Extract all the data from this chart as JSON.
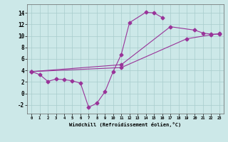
{
  "color": "#993399",
  "bg_color": "#cce8e8",
  "xlabel": "Windchill (Refroidissement éolien,°C)",
  "xlim": [
    -0.5,
    23.5
  ],
  "ylim": [
    -3.5,
    15.5
  ],
  "yticks": [
    -2,
    0,
    2,
    4,
    6,
    8,
    10,
    12,
    14
  ],
  "xticks": [
    0,
    1,
    2,
    3,
    4,
    5,
    6,
    7,
    8,
    9,
    10,
    11,
    12,
    13,
    14,
    15,
    16,
    17,
    18,
    19,
    20,
    21,
    22,
    23
  ],
  "line1_x": [
    0,
    1,
    2,
    3,
    4,
    5,
    6,
    7,
    8,
    9,
    10,
    11,
    12,
    14,
    15,
    16
  ],
  "line1_y": [
    3.8,
    3.3,
    2.1,
    2.5,
    2.4,
    2.2,
    1.8,
    -2.4,
    -1.7,
    0.3,
    3.8,
    6.8,
    12.3,
    14.1,
    14.0,
    13.2
  ],
  "line2_x": [
    0,
    11,
    17,
    20,
    21,
    22,
    23
  ],
  "line2_y": [
    3.8,
    5.0,
    11.6,
    11.0,
    10.5,
    10.3,
    10.3
  ],
  "line3_x": [
    0,
    11,
    19,
    22,
    23
  ],
  "line3_y": [
    3.8,
    4.5,
    9.5,
    10.2,
    10.4
  ]
}
